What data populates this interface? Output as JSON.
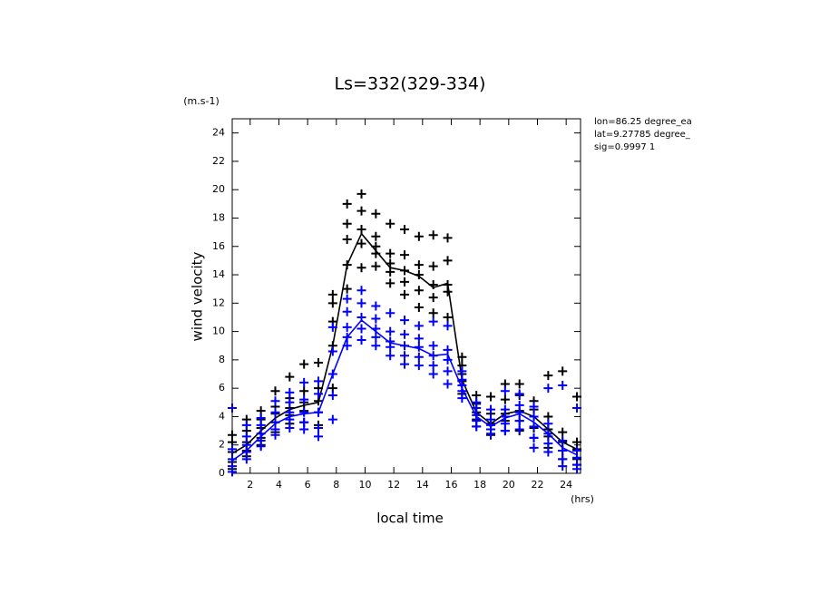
{
  "chart_data": {
    "type": "line",
    "title": "Ls=332(329-334)",
    "y_unit": "(m.s-1)",
    "x_unit": "(hrs)",
    "xlabel": "local time",
    "ylabel": "wind velocity",
    "annotations": [
      "lon=86.25 degree_ea",
      "lat=9.27785 degree_",
      "sig=0.9997 1"
    ],
    "xlim": [
      0.75,
      25
    ],
    "ylim": [
      0,
      25
    ],
    "xticks": [
      2,
      4,
      6,
      8,
      10,
      12,
      14,
      16,
      18,
      20,
      22,
      24
    ],
    "yticks": [
      0,
      2,
      4,
      6,
      8,
      10,
      12,
      14,
      16,
      18,
      20,
      22,
      24
    ],
    "x": [
      0.75,
      1.75,
      2.75,
      3.75,
      4.75,
      5.75,
      6.75,
      7.75,
      8.75,
      9.75,
      10.75,
      11.75,
      12.75,
      13.75,
      14.75,
      15.75,
      16.75,
      17.75,
      18.75,
      19.75,
      20.75,
      21.75,
      22.75,
      23.75,
      24.75
    ],
    "series": [
      {
        "color": "#000000",
        "values": [
          1.4,
          2.0,
          3.0,
          3.9,
          4.5,
          4.8,
          5.0,
          9.0,
          14.7,
          16.9,
          15.7,
          14.5,
          14.3,
          13.9,
          13.1,
          13.4,
          6.6,
          4.3,
          3.5,
          4.2,
          4.4,
          4.0,
          3.1,
          2.2,
          1.7
        ],
        "points": [
          [
            0.3,
            0.8,
            1.5,
            2.2,
            2.7
          ],
          [
            1.2,
            1.6,
            2.2,
            3.0,
            3.8
          ],
          [
            2.0,
            2.5,
            3.2,
            3.8,
            4.4
          ],
          [
            2.9,
            3.6,
            4.2,
            4.7,
            5.8
          ],
          [
            3.5,
            4.1,
            4.6,
            5.3,
            6.8
          ],
          [
            3.6,
            4.4,
            5.0,
            5.8,
            7.7
          ],
          [
            3.4,
            4.3,
            5.1,
            6.0,
            7.8
          ],
          [
            6.0,
            9.0,
            10.7,
            12.0,
            12.6
          ],
          [
            13.0,
            14.7,
            16.5,
            17.6,
            19.0
          ],
          [
            14.5,
            16.2,
            17.2,
            18.5,
            19.7
          ],
          [
            14.6,
            15.5,
            16.0,
            16.7,
            18.3
          ],
          [
            13.4,
            14.2,
            14.8,
            15.5,
            17.6
          ],
          [
            12.6,
            13.5,
            14.3,
            15.4,
            17.2
          ],
          [
            11.7,
            12.9,
            14.0,
            14.7,
            16.7
          ],
          [
            11.3,
            12.4,
            13.3,
            14.6,
            16.8
          ],
          [
            11.0,
            12.8,
            13.3,
            15.0,
            16.6
          ],
          [
            5.6,
            6.5,
            7.0,
            7.6,
            8.2
          ],
          [
            3.3,
            3.8,
            4.3,
            4.9,
            5.5
          ],
          [
            2.7,
            3.1,
            3.5,
            4.2,
            5.4
          ],
          [
            3.0,
            3.7,
            4.2,
            5.2,
            6.3
          ],
          [
            3.0,
            3.7,
            4.4,
            5.5,
            6.3
          ],
          [
            2.5,
            3.2,
            4.0,
            4.5,
            5.1
          ],
          [
            1.8,
            2.6,
            3.1,
            4.0,
            6.9
          ],
          [
            1.0,
            1.6,
            2.2,
            2.9,
            7.2
          ],
          [
            0.6,
            1.0,
            1.7,
            2.2,
            5.4
          ]
        ]
      },
      {
        "color": "#0000ff",
        "values": [
          0.9,
          1.6,
          2.6,
          3.5,
          4.0,
          4.2,
          4.3,
          7.0,
          9.6,
          10.8,
          10.0,
          9.2,
          9.0,
          8.8,
          8.3,
          8.4,
          6.0,
          4.0,
          3.3,
          3.9,
          4.2,
          3.6,
          2.8,
          1.8,
          1.3
        ],
        "points": [
          [
            0.1,
            0.5,
            1.0,
            1.7,
            4.6
          ],
          [
            1.0,
            1.5,
            2.0,
            2.6,
            3.4
          ],
          [
            1.9,
            2.3,
            2.8,
            3.4,
            3.9
          ],
          [
            2.7,
            3.1,
            3.6,
            4.3,
            5.1
          ],
          [
            3.2,
            3.8,
            4.3,
            5.0,
            5.7
          ],
          [
            3.1,
            3.6,
            4.3,
            5.2,
            6.4
          ],
          [
            2.6,
            3.2,
            4.3,
            5.6,
            6.5
          ],
          [
            3.8,
            5.5,
            7.0,
            8.6,
            10.3
          ],
          [
            9.0,
            9.6,
            10.3,
            11.4,
            12.3
          ],
          [
            9.4,
            10.2,
            11.0,
            12.0,
            12.9
          ],
          [
            9.0,
            9.6,
            10.2,
            10.9,
            11.8
          ],
          [
            8.3,
            8.9,
            9.3,
            10.0,
            11.3
          ],
          [
            7.7,
            8.3,
            9.0,
            9.8,
            10.8
          ],
          [
            7.6,
            8.2,
            8.9,
            9.5,
            10.4
          ],
          [
            7.0,
            7.6,
            8.3,
            9.0,
            10.7
          ],
          [
            6.3,
            7.2,
            8.0,
            8.7,
            10.4
          ],
          [
            5.3,
            5.8,
            6.2,
            6.6,
            7.2
          ],
          [
            3.3,
            3.7,
            4.1,
            4.6,
            5.0
          ],
          [
            2.8,
            3.1,
            3.4,
            3.8,
            4.5
          ],
          [
            3.0,
            3.5,
            4.0,
            4.5,
            5.8
          ],
          [
            3.1,
            3.7,
            4.3,
            4.8,
            5.6
          ],
          [
            1.8,
            2.5,
            3.3,
            4.0,
            4.7
          ],
          [
            1.5,
            2.1,
            2.8,
            3.5,
            6.0
          ],
          [
            0.5,
            1.0,
            1.6,
            2.3,
            6.2
          ],
          [
            0.3,
            0.6,
            1.1,
            1.6,
            4.6
          ]
        ]
      }
    ]
  }
}
